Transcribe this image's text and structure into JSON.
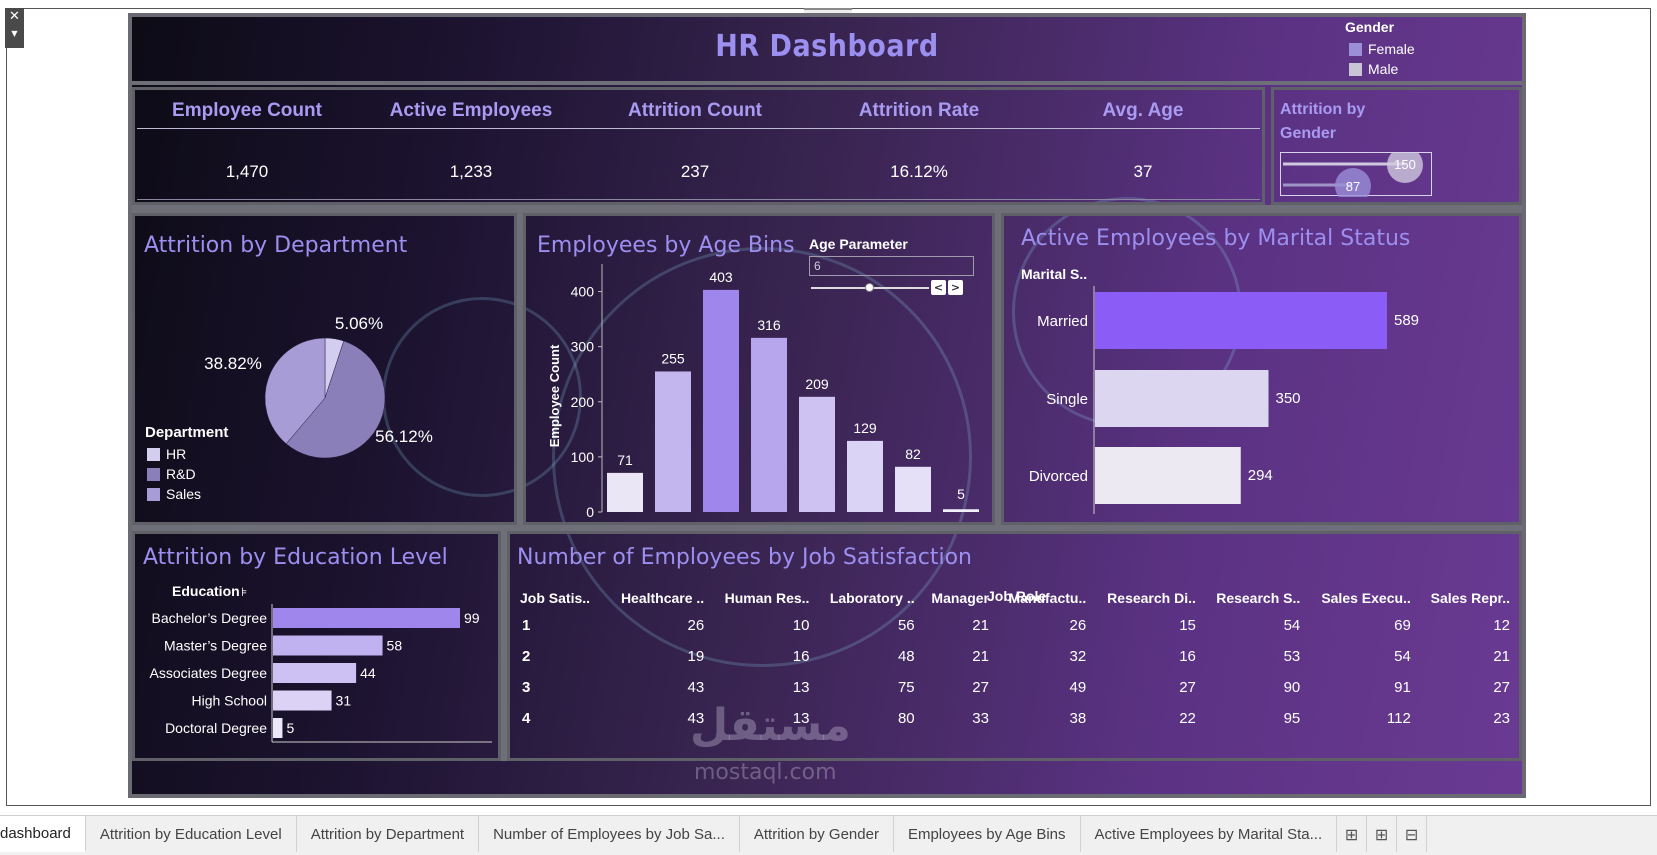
{
  "dashboard": {
    "title": "HR Dashboard",
    "gender_legend": {
      "title": "Gender",
      "items": [
        {
          "label": "Female",
          "color": "#9b8fd8"
        },
        {
          "label": "Male",
          "color": "#c9c4d6"
        }
      ]
    },
    "kpis": [
      {
        "label": "Employee Count",
        "value": "1,470"
      },
      {
        "label": "Active Employees",
        "value": "1,233"
      },
      {
        "label": "Attrition Count",
        "value": "237"
      },
      {
        "label": "Attrition Rate",
        "value": "16.12%"
      },
      {
        "label": "Avg. Age",
        "value": "37"
      }
    ],
    "attrition_by_gender": {
      "title": "Attrition by Gender",
      "values": [
        "150",
        "87"
      ]
    },
    "attrition_by_department": {
      "title": "Attrition by Department",
      "legend_title": "Department",
      "legend": [
        {
          "label": "HR",
          "color": "#d3cdf0"
        },
        {
          "label": "R&D",
          "color": "#8a7fb8"
        },
        {
          "label": "Sales",
          "color": "#a89cd6"
        }
      ]
    },
    "age_bins": {
      "title": "Employees by Age Bins",
      "param_label": "Age Parameter",
      "param_value": "6"
    },
    "marital": {
      "title": "Active Employees by Marital Status",
      "axis_header": "Marital S.."
    },
    "education": {
      "title": "Attrition by Education Level",
      "axis_header": "Education"
    },
    "job_satisfaction": {
      "title": "Number of Employees by Job Satisfaction",
      "group_header": "Job Role",
      "row_header": "Job Satis..",
      "columns": [
        "Healthcare ..",
        "Human Res..",
        "Laboratory ..",
        "Manager",
        "Manufactu..",
        "Research Di..",
        "Research S..",
        "Sales Execu..",
        "Sales Repr.."
      ],
      "rows": [
        {
          "level": "1",
          "values": [
            "26",
            "10",
            "56",
            "21",
            "26",
            "15",
            "54",
            "69",
            "12"
          ]
        },
        {
          "level": "2",
          "values": [
            "19",
            "16",
            "48",
            "21",
            "32",
            "16",
            "53",
            "54",
            "21"
          ]
        },
        {
          "level": "3",
          "values": [
            "43",
            "13",
            "75",
            "27",
            "49",
            "27",
            "90",
            "91",
            "27"
          ]
        },
        {
          "level": "4",
          "values": [
            "43",
            "13",
            "80",
            "33",
            "38",
            "22",
            "95",
            "112",
            "23"
          ]
        }
      ]
    }
  },
  "watermark": {
    "text": "مستقل",
    "sub": "mostaql.com"
  },
  "tabs": [
    {
      "label": "dashboard",
      "active": true
    },
    {
      "label": "Attrition by Education Level"
    },
    {
      "label": "Attrition by Department"
    },
    {
      "label": "Number of Employees by Job Sa..."
    },
    {
      "label": "Attrition by Gender"
    },
    {
      "label": "Employees by Age Bins"
    },
    {
      "label": "Active Employees by Marital Sta..."
    }
  ],
  "tab_icons": [
    "new-worksheet-icon",
    "new-dashboard-icon",
    "new-story-icon"
  ],
  "chart_data": [
    {
      "type": "pie",
      "title": "Attrition by Department",
      "categories": [
        "HR",
        "R&D",
        "Sales"
      ],
      "values": [
        5.06,
        56.12,
        38.82
      ],
      "labels": [
        "5.06%",
        "56.12%",
        "38.82%"
      ],
      "colors": [
        "#d3cdf0",
        "#8a7fb8",
        "#a89cd6"
      ],
      "legend": "left"
    },
    {
      "type": "bar",
      "title": "Employees by Age Bins",
      "ylabel": "Employee Count",
      "ylim": [
        0,
        450
      ],
      "yticks": [
        0,
        100,
        200,
        300,
        400
      ],
      "values": [
        71,
        255,
        403,
        316,
        209,
        129,
        82,
        5
      ],
      "colors": [
        "#eae6f6",
        "#c3b6ef",
        "#9f86ec",
        "#b7a5ee",
        "#cdc2f2",
        "#dbd3f5",
        "#e5e0f8",
        "#f2f0fa"
      ]
    },
    {
      "type": "bar",
      "orientation": "horizontal",
      "title": "Active Employees by Marital Status",
      "categories": [
        "Married",
        "Single",
        "Divorced"
      ],
      "values": [
        589,
        350,
        294
      ],
      "colors": [
        "#8b5cf6",
        "#ddd6f0",
        "#ece9f2"
      ]
    },
    {
      "type": "bar",
      "orientation": "horizontal",
      "title": "Attrition by Education Level",
      "categories": [
        "Bachelor’s Degree",
        "Master’s Degree",
        "Associates Degree",
        "High School",
        "Doctoral Degree"
      ],
      "values": [
        99,
        58,
        44,
        31,
        5
      ],
      "colors": [
        "#9f86ec",
        "#c0b1f0",
        "#cdc1f3",
        "#dbd2f6",
        "#ece8f9"
      ]
    },
    {
      "type": "table",
      "title": "Number of Employees by Job Satisfaction"
    }
  ]
}
